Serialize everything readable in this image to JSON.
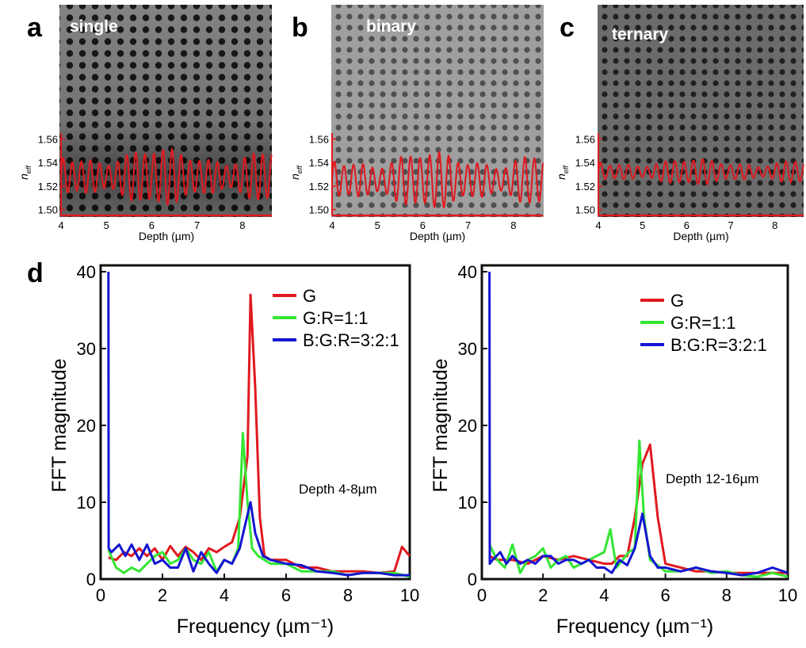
{
  "panel_letters": {
    "a": "a",
    "b": "b",
    "c": "c",
    "d": "d"
  },
  "colors": {
    "red": "#e0191f",
    "green": "#33e633",
    "blue": "#1414d2",
    "axis": "#111111"
  },
  "chart_data": [
    {
      "panel": "a",
      "type": "line",
      "inset_label": "single",
      "xlabel": "Depth (µm)",
      "ylabel": "n_eff",
      "xlim": [
        4,
        8.65
      ],
      "ylim": [
        1.495,
        1.565
      ],
      "xticks": [
        "4",
        "5",
        "6",
        "7",
        "8"
      ],
      "yticks": [
        "1.50",
        "1.52",
        "1.54",
        "1.56"
      ],
      "series": [
        {
          "period_um": 0.2,
          "mean": 1.528,
          "amplitude": 0.022
        }
      ]
    },
    {
      "panel": "b",
      "type": "line",
      "inset_label": "binary",
      "xlabel": "Depth (µm)",
      "ylabel": "n_eff",
      "xlim": [
        4,
        8.65
      ],
      "ylim": [
        1.495,
        1.565
      ],
      "xticks": [
        "4",
        "5",
        "6",
        "7",
        "8"
      ],
      "yticks": [
        "1.50",
        "1.52",
        "1.54",
        "1.56"
      ],
      "series": [
        {
          "period_um": 0.21,
          "mean": 1.525,
          "amplitude": 0.022
        }
      ]
    },
    {
      "panel": "c",
      "type": "line",
      "inset_label": "ternary",
      "xlabel": "Depth (µm)",
      "ylabel": "n_eff",
      "xlim": [
        4,
        8.65
      ],
      "ylim": [
        1.495,
        1.565
      ],
      "xticks": [
        "4",
        "5",
        "6",
        "7",
        "8"
      ],
      "yticks": [
        "1.50",
        "1.52",
        "1.54",
        "1.56"
      ],
      "series": [
        {
          "period_um": 0.21,
          "mean": 1.532,
          "amplitude": 0.01
        }
      ]
    },
    {
      "panel": "d-left",
      "type": "line",
      "xlabel": "Frequency (µm⁻¹)",
      "ylabel": "FFT magnitude",
      "annotation": "Depth 4-8µm",
      "xlim": [
        0,
        10
      ],
      "ylim": [
        0,
        40
      ],
      "xticks": [
        "0",
        "2",
        "4",
        "6",
        "8",
        "10"
      ],
      "yticks": [
        "0",
        "10",
        "20",
        "30",
        "40"
      ],
      "legend": [
        "G",
        "G:R=1:1",
        "B:G:R=3:2:1"
      ],
      "series": [
        {
          "name": "G",
          "x": [
            0.25,
            0.5,
            0.75,
            1.0,
            1.25,
            1.5,
            1.75,
            2.0,
            2.25,
            2.5,
            2.75,
            3.0,
            3.25,
            3.5,
            3.75,
            4.0,
            4.25,
            4.5,
            4.75,
            4.85,
            5.0,
            5.15,
            5.3,
            5.5,
            5.75,
            6.0,
            6.5,
            7.0,
            7.5,
            8.0,
            8.5,
            9.0,
            9.5,
            9.75,
            10.0
          ],
          "y": [
            2.8,
            2.5,
            3.5,
            3.0,
            4.0,
            3.0,
            4.0,
            2.5,
            4.3,
            3.0,
            4.2,
            3.5,
            2.5,
            4.0,
            3.5,
            4.2,
            4.8,
            8.0,
            16.0,
            37.0,
            25.0,
            8.0,
            3.0,
            2.5,
            2.5,
            2.5,
            1.5,
            1.5,
            1.0,
            1.0,
            1.0,
            0.8,
            1.0,
            4.2,
            3.0
          ]
        },
        {
          "name": "G:R=1:1",
          "x": [
            0.25,
            0.5,
            0.75,
            1.0,
            1.25,
            1.5,
            1.75,
            2.0,
            2.25,
            2.5,
            2.75,
            3.0,
            3.25,
            3.5,
            3.75,
            4.0,
            4.25,
            4.45,
            4.6,
            4.75,
            4.9,
            5.1,
            5.3,
            5.5,
            6.0,
            6.5,
            7.0,
            7.5,
            8.0,
            8.5,
            9.0,
            9.5,
            10.0
          ],
          "y": [
            3.8,
            1.5,
            0.8,
            1.5,
            1.0,
            2.0,
            3.0,
            3.5,
            2.0,
            2.5,
            4.0,
            2.5,
            2.0,
            3.5,
            1.0,
            2.5,
            2.0,
            4.0,
            19.0,
            10.0,
            4.0,
            3.0,
            2.5,
            2.0,
            2.0,
            1.0,
            1.0,
            1.0,
            0.5,
            0.8,
            0.8,
            0.8,
            0.3
          ]
        },
        {
          "name": "B:G:R=3:2:1",
          "x": [
            0.25,
            0.26,
            0.35,
            0.6,
            0.8,
            1.0,
            1.25,
            1.5,
            1.75,
            2.0,
            2.25,
            2.5,
            2.75,
            3.0,
            3.25,
            3.5,
            3.75,
            4.0,
            4.25,
            4.5,
            4.7,
            4.85,
            5.0,
            5.25,
            5.5,
            6.0,
            6.5,
            7.0,
            7.5,
            8.0,
            8.5,
            9.0,
            9.5,
            10.0
          ],
          "y": [
            40.0,
            4.0,
            3.5,
            4.5,
            3.0,
            4.5,
            2.5,
            4.5,
            2.0,
            2.5,
            1.5,
            1.5,
            4.0,
            1.0,
            3.5,
            2.0,
            0.8,
            2.5,
            2.0,
            4.0,
            7.5,
            10.0,
            6.0,
            3.0,
            2.5,
            2.0,
            1.8,
            1.0,
            0.8,
            0.5,
            0.8,
            0.8,
            0.5,
            0.5
          ]
        }
      ]
    },
    {
      "panel": "d-right",
      "type": "line",
      "xlabel": "Frequency (µm⁻¹)",
      "ylabel": "FFT magnitude",
      "annotation": "Depth 12-16µm",
      "xlim": [
        0,
        10
      ],
      "ylim": [
        0,
        40
      ],
      "xticks": [
        "0",
        "2",
        "4",
        "6",
        "8",
        "10"
      ],
      "yticks": [
        "0",
        "10",
        "20",
        "30",
        "40"
      ],
      "legend": [
        "G",
        "G:R=1:1",
        "B:G:R=3:2:1"
      ],
      "series": [
        {
          "name": "G",
          "x": [
            0.25,
            0.5,
            0.75,
            1.0,
            1.5,
            2.0,
            2.5,
            3.0,
            3.5,
            4.0,
            4.25,
            4.5,
            4.75,
            5.0,
            5.25,
            5.5,
            5.75,
            6.0,
            6.5,
            7.0,
            7.5,
            8.0,
            8.5,
            9.0,
            9.5,
            10.0
          ],
          "y": [
            3.0,
            2.5,
            2.5,
            2.5,
            2.0,
            3.0,
            2.5,
            3.0,
            2.5,
            2.0,
            2.0,
            3.0,
            3.0,
            8.0,
            15.0,
            17.5,
            8.0,
            2.0,
            1.5,
            1.0,
            1.0,
            0.8,
            0.8,
            0.8,
            0.8,
            0.8
          ]
        },
        {
          "name": "G:R=1:1",
          "x": [
            0.25,
            0.5,
            0.75,
            1.0,
            1.25,
            1.5,
            1.75,
            2.0,
            2.25,
            2.5,
            2.75,
            3.0,
            3.5,
            3.75,
            4.0,
            4.2,
            4.4,
            4.6,
            4.8,
            5.0,
            5.15,
            5.3,
            5.5,
            5.75,
            6.0,
            6.5,
            7.0,
            7.5,
            8.0,
            8.5,
            9.0,
            9.5,
            10.0
          ],
          "y": [
            4.5,
            2.5,
            1.5,
            4.5,
            0.8,
            2.5,
            3.0,
            4.0,
            1.5,
            2.5,
            3.0,
            1.5,
            2.5,
            3.0,
            3.5,
            6.5,
            1.5,
            2.5,
            3.5,
            4.0,
            18.0,
            8.0,
            2.5,
            1.8,
            1.0,
            1.0,
            1.5,
            0.8,
            1.0,
            0.5,
            0.3,
            0.8,
            0.3
          ]
        },
        {
          "name": "B:G:R=3:2:1",
          "x": [
            0.25,
            0.26,
            0.35,
            0.6,
            0.8,
            1.0,
            1.25,
            1.5,
            1.75,
            2.0,
            2.25,
            2.5,
            2.75,
            3.0,
            3.25,
            3.5,
            3.75,
            4.0,
            4.25,
            4.5,
            4.75,
            5.0,
            5.25,
            5.5,
            5.75,
            6.0,
            6.5,
            7.0,
            7.5,
            8.0,
            8.5,
            9.0,
            9.5,
            10.0
          ],
          "y": [
            40.0,
            2.0,
            2.5,
            3.5,
            2.0,
            3.0,
            2.0,
            2.5,
            2.0,
            3.0,
            3.0,
            2.0,
            2.5,
            2.5,
            2.0,
            2.5,
            1.5,
            1.5,
            0.8,
            2.5,
            1.8,
            4.0,
            8.5,
            3.0,
            1.5,
            1.5,
            1.0,
            1.5,
            1.0,
            0.8,
            0.5,
            0.8,
            1.5,
            0.8
          ]
        }
      ]
    }
  ]
}
